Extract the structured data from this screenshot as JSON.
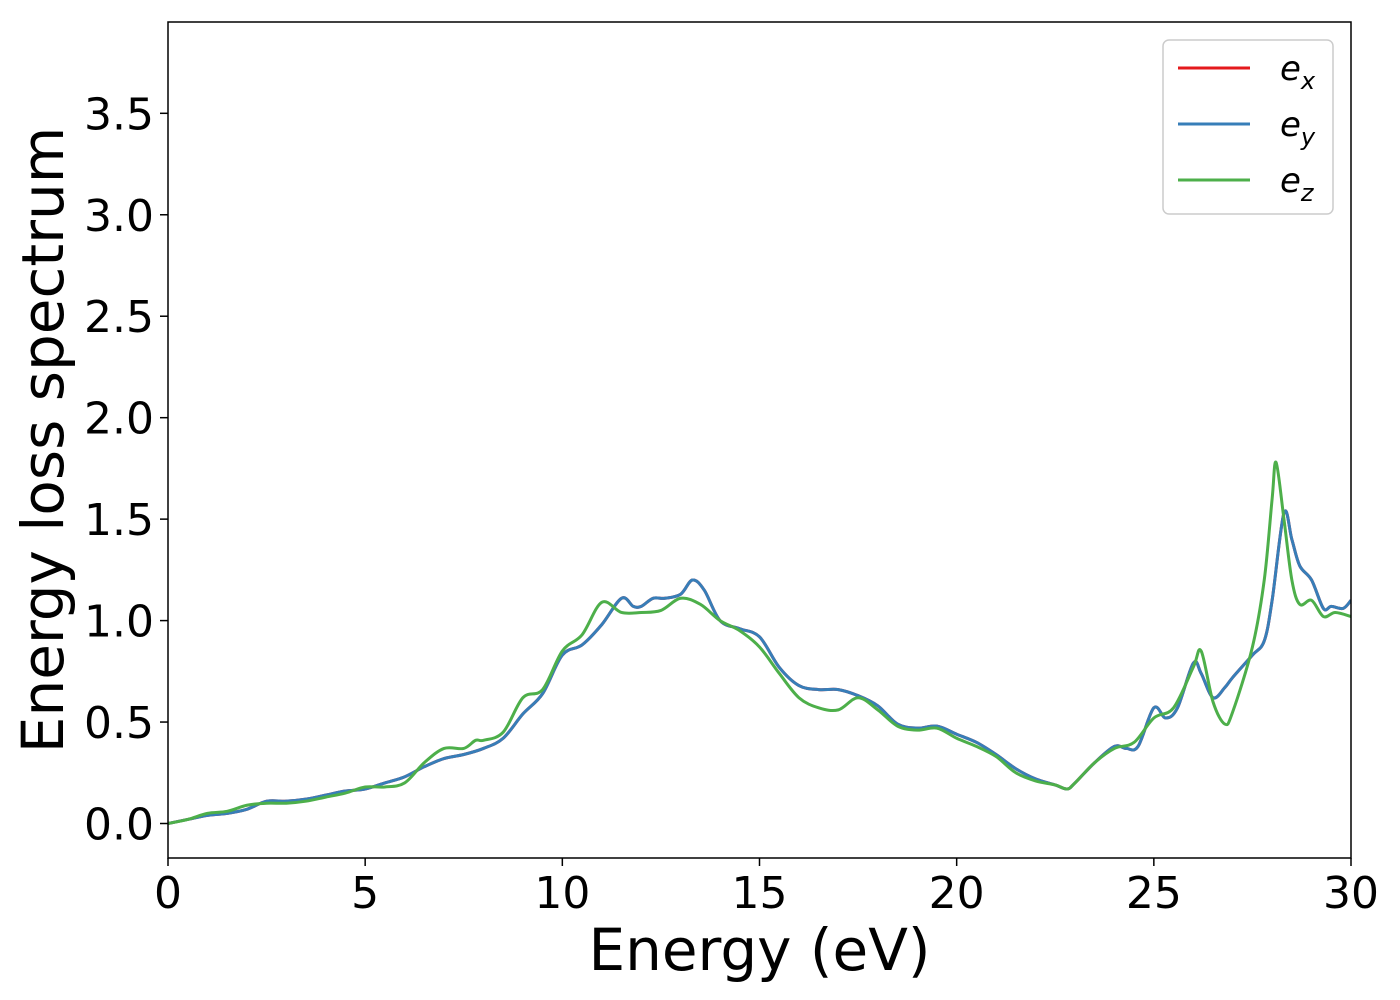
{
  "chart_data": {
    "type": "line",
    "title": "",
    "xlabel": "Energy (eV)",
    "ylabel": "Energy loss spectrum",
    "xlim": [
      0,
      30
    ],
    "ylim": [
      -0.17,
      3.95
    ],
    "xticks": [
      0,
      5,
      10,
      15,
      20,
      25,
      30
    ],
    "yticks": [
      0.0,
      0.5,
      1.0,
      1.5,
      2.0,
      2.5,
      3.0,
      3.5
    ],
    "xtick_labels": [
      "0",
      "5",
      "10",
      "15",
      "20",
      "25",
      "30"
    ],
    "ytick_labels": [
      "0.0",
      "0.5",
      "1.0",
      "1.5",
      "2.0",
      "2.5",
      "3.0",
      "3.5"
    ],
    "grid": false,
    "legend_position": "top-right",
    "series": [
      {
        "name": "e",
        "subscript": "x",
        "color": "#e41a1c",
        "x": [
          0,
          0.5,
          1.0,
          1.5,
          2.0,
          2.5,
          3.0,
          3.5,
          4.0,
          4.5,
          5.0,
          5.5,
          6.0,
          6.5,
          7.0,
          7.5,
          8.0,
          8.5,
          9.0,
          9.5,
          10.0,
          10.5,
          11.0,
          11.5,
          11.8,
          12.0,
          12.3,
          12.6,
          13.0,
          13.3,
          13.6,
          14.0,
          14.5,
          15.0,
          15.5,
          16.0,
          16.5,
          17.0,
          17.5,
          18.0,
          18.5,
          19.0,
          19.5,
          20.0,
          20.5,
          21.0,
          21.5,
          22.0,
          22.5,
          22.8,
          23.0,
          23.5,
          24.0,
          24.3,
          24.6,
          25.0,
          25.3,
          25.6,
          26.0,
          26.2,
          26.5,
          26.8,
          27.0,
          27.5,
          27.8,
          28.0,
          28.3,
          28.5,
          28.7,
          29.0,
          29.3,
          29.5,
          29.8,
          30.0
        ],
        "values": [
          0.0,
          0.02,
          0.04,
          0.05,
          0.07,
          0.11,
          0.11,
          0.12,
          0.14,
          0.16,
          0.17,
          0.2,
          0.23,
          0.28,
          0.32,
          0.34,
          0.37,
          0.42,
          0.54,
          0.64,
          0.83,
          0.88,
          0.98,
          1.11,
          1.07,
          1.07,
          1.11,
          1.11,
          1.13,
          1.2,
          1.15,
          1.0,
          0.96,
          0.92,
          0.77,
          0.68,
          0.66,
          0.66,
          0.63,
          0.58,
          0.49,
          0.47,
          0.48,
          0.44,
          0.4,
          0.34,
          0.27,
          0.22,
          0.19,
          0.17,
          0.2,
          0.3,
          0.38,
          0.37,
          0.38,
          0.57,
          0.52,
          0.57,
          0.79,
          0.74,
          0.62,
          0.67,
          0.72,
          0.83,
          0.9,
          1.1,
          1.53,
          1.4,
          1.27,
          1.2,
          1.06,
          1.07,
          1.06,
          1.1
        ]
      },
      {
        "name": "e",
        "subscript": "y",
        "color": "#377eb8",
        "x": [
          0,
          0.5,
          1.0,
          1.5,
          2.0,
          2.5,
          3.0,
          3.5,
          4.0,
          4.5,
          5.0,
          5.5,
          6.0,
          6.5,
          7.0,
          7.5,
          8.0,
          8.5,
          9.0,
          9.5,
          10.0,
          10.5,
          11.0,
          11.5,
          11.8,
          12.0,
          12.3,
          12.6,
          13.0,
          13.3,
          13.6,
          14.0,
          14.5,
          15.0,
          15.5,
          16.0,
          16.5,
          17.0,
          17.5,
          18.0,
          18.5,
          19.0,
          19.5,
          20.0,
          20.5,
          21.0,
          21.5,
          22.0,
          22.5,
          22.8,
          23.0,
          23.5,
          24.0,
          24.3,
          24.6,
          25.0,
          25.3,
          25.6,
          26.0,
          26.2,
          26.5,
          26.8,
          27.0,
          27.5,
          27.8,
          28.0,
          28.3,
          28.5,
          28.7,
          29.0,
          29.3,
          29.5,
          29.8,
          30.0
        ],
        "values": [
          0.0,
          0.02,
          0.04,
          0.05,
          0.07,
          0.11,
          0.11,
          0.12,
          0.14,
          0.16,
          0.17,
          0.2,
          0.23,
          0.28,
          0.32,
          0.34,
          0.37,
          0.42,
          0.54,
          0.64,
          0.83,
          0.88,
          0.98,
          1.11,
          1.07,
          1.07,
          1.11,
          1.11,
          1.13,
          1.2,
          1.15,
          1.0,
          0.96,
          0.92,
          0.77,
          0.68,
          0.66,
          0.66,
          0.63,
          0.58,
          0.49,
          0.47,
          0.48,
          0.44,
          0.4,
          0.34,
          0.27,
          0.22,
          0.19,
          0.17,
          0.2,
          0.3,
          0.38,
          0.37,
          0.38,
          0.57,
          0.52,
          0.57,
          0.79,
          0.74,
          0.62,
          0.67,
          0.72,
          0.83,
          0.9,
          1.1,
          1.53,
          1.4,
          1.27,
          1.2,
          1.06,
          1.07,
          1.06,
          1.1
        ]
      },
      {
        "name": "e",
        "subscript": "z",
        "color": "#4daf4a",
        "x": [
          0,
          0.5,
          1.0,
          1.5,
          2.0,
          2.5,
          3.0,
          3.5,
          4.0,
          4.5,
          5.0,
          5.5,
          6.0,
          6.5,
          7.0,
          7.5,
          7.8,
          8.0,
          8.5,
          9.0,
          9.5,
          10.0,
          10.5,
          11.0,
          11.5,
          12.0,
          12.5,
          13.0,
          13.5,
          14.0,
          14.5,
          15.0,
          15.5,
          16.0,
          16.5,
          17.0,
          17.5,
          18.0,
          18.5,
          19.0,
          19.5,
          20.0,
          20.5,
          21.0,
          21.5,
          22.0,
          22.5,
          22.8,
          23.0,
          23.5,
          24.0,
          24.5,
          25.0,
          25.5,
          26.0,
          26.2,
          26.5,
          26.8,
          27.0,
          27.5,
          27.8,
          28.0,
          28.1,
          28.3,
          28.5,
          28.7,
          29.0,
          29.3,
          29.6,
          30.0
        ],
        "values": [
          0.0,
          0.02,
          0.05,
          0.06,
          0.09,
          0.1,
          0.1,
          0.11,
          0.13,
          0.15,
          0.18,
          0.18,
          0.2,
          0.3,
          0.37,
          0.37,
          0.41,
          0.41,
          0.45,
          0.62,
          0.66,
          0.85,
          0.93,
          1.09,
          1.04,
          1.04,
          1.05,
          1.11,
          1.08,
          1.0,
          0.95,
          0.87,
          0.74,
          0.62,
          0.57,
          0.56,
          0.62,
          0.56,
          0.48,
          0.46,
          0.47,
          0.42,
          0.38,
          0.33,
          0.25,
          0.21,
          0.19,
          0.17,
          0.2,
          0.3,
          0.37,
          0.4,
          0.52,
          0.57,
          0.77,
          0.85,
          0.6,
          0.49,
          0.55,
          0.87,
          1.2,
          1.6,
          1.78,
          1.5,
          1.2,
          1.08,
          1.1,
          1.02,
          1.04,
          1.02
        ]
      }
    ]
  }
}
